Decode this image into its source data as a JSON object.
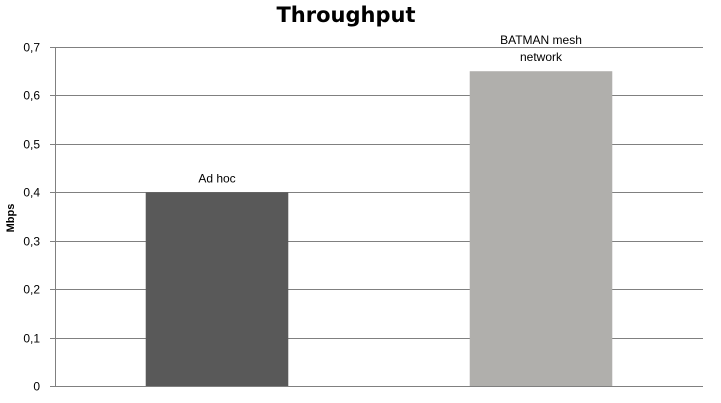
{
  "chart_data": {
    "type": "bar",
    "title": "Throughput",
    "ylabel": "Mbps",
    "xlabel": "",
    "categories": [
      "Ad hoc",
      "BATMAN mesh network"
    ],
    "category_label_lines": [
      [
        "Ad hoc"
      ],
      [
        "BATMAN mesh",
        "network"
      ]
    ],
    "values": [
      0.4,
      0.65
    ],
    "ylim": [
      0,
      0.7
    ],
    "y_ticks": [
      0,
      0.1,
      0.2,
      0.3,
      0.4,
      0.5,
      0.6,
      0.7
    ],
    "y_tick_labels": [
      "0",
      "0,1",
      "0,2",
      "0,3",
      "0,4",
      "0,5",
      "0,6",
      "0,7"
    ],
    "grid": true,
    "legend": "none",
    "colors": [
      "#595959",
      "#b0afac"
    ],
    "gridline_color": "#808080",
    "axis_color": "#808080"
  }
}
